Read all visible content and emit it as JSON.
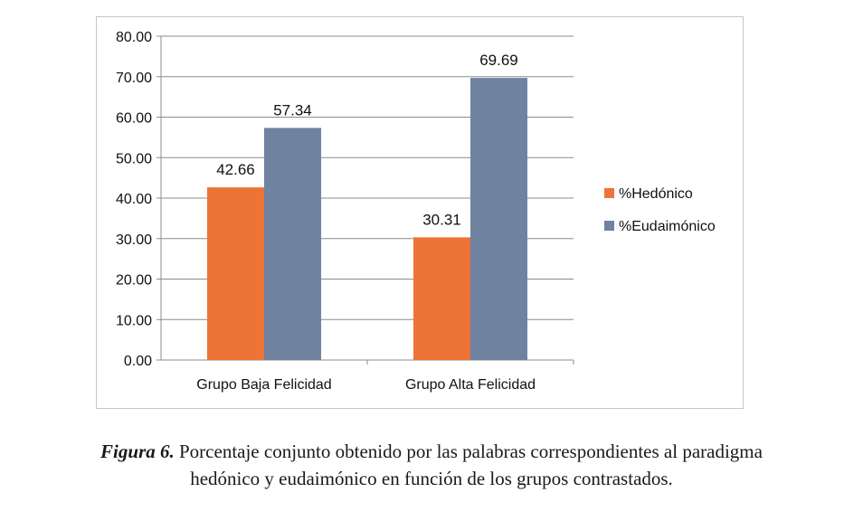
{
  "chart_data": {
    "type": "bar",
    "categories": [
      "Grupo Baja Felicidad",
      "Grupo Alta Felicidad"
    ],
    "series": [
      {
        "name": "%Hedónico",
        "values": [
          42.66,
          30.31
        ],
        "color": "#ed7437"
      },
      {
        "name": "%Eudaimónico",
        "values": [
          57.34,
          69.69
        ],
        "color": "#6f83a0"
      }
    ],
    "data_labels": [
      [
        "42.66",
        "30.31"
      ],
      [
        "57.34",
        "69.69"
      ]
    ],
    "yticks": [
      "0.00",
      "10.00",
      "20.00",
      "30.00",
      "40.00",
      "50.00",
      "60.00",
      "70.00",
      "80.00"
    ],
    "ylim": [
      0,
      80
    ],
    "grid": true,
    "legend_position": "right"
  },
  "caption": {
    "label": "Figura 6.",
    "line1": "Porcentaje conjunto obtenido por las palabras correspondientes al paradigma",
    "line2": "hedónico y eudaimónico en función de los grupos contrastados."
  }
}
